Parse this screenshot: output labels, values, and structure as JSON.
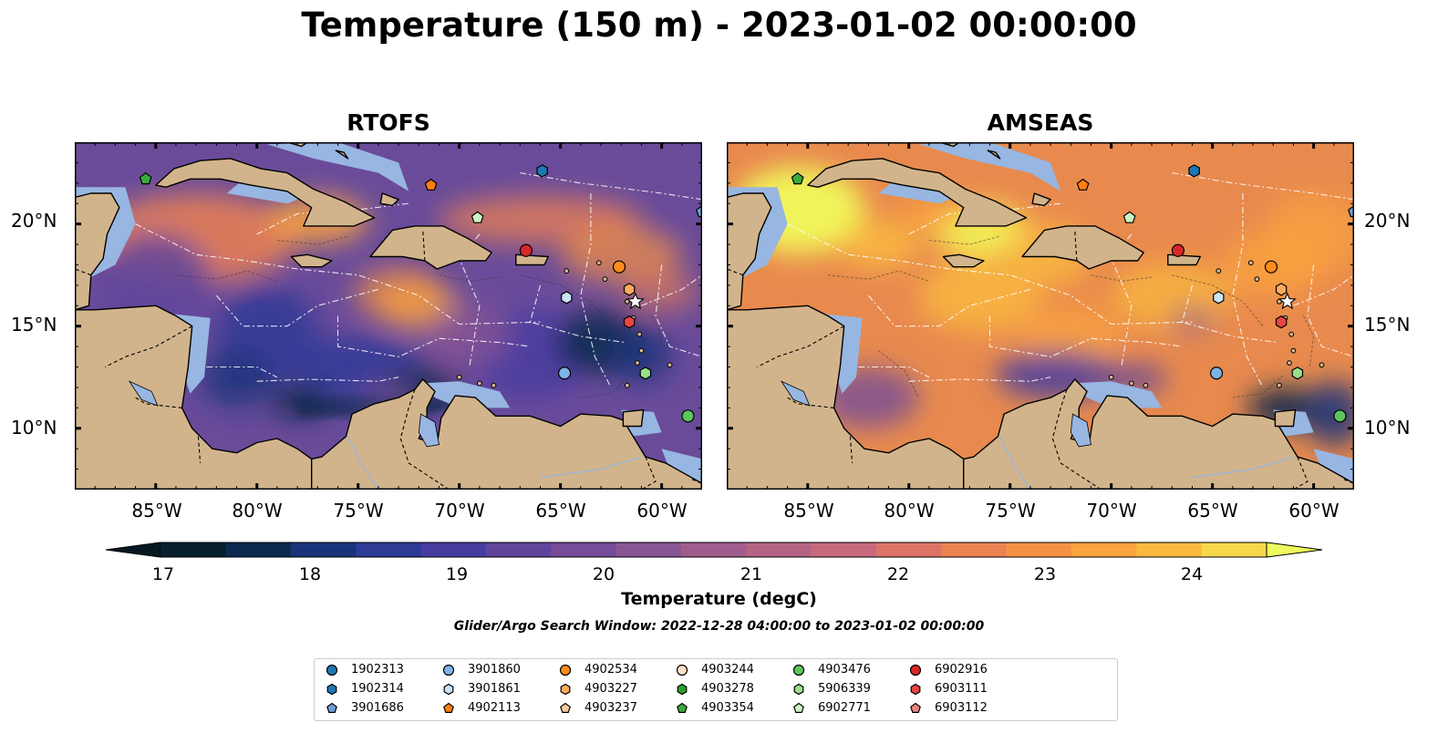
{
  "figure": {
    "title": "Temperature (150 m) - 2023-01-02 00:00:00",
    "search_window": "Glider/Argo Search Window: 2022-12-28 04:00:00 to 2023-01-02 00:00:00"
  },
  "panels": [
    {
      "title": "RTOFS",
      "palette": "cool"
    },
    {
      "title": "AMSEAS",
      "palette": "warm"
    }
  ],
  "axes": {
    "lat_ticks": [
      "20°N",
      "15°N",
      "10°N"
    ],
    "lon_ticks": [
      "85°W",
      "80°W",
      "75°W",
      "70°W",
      "65°W",
      "60°W"
    ],
    "lon_range": [
      -89,
      -58
    ],
    "lat_range": [
      7,
      24
    ]
  },
  "colorbar": {
    "label": "Temperature (degC)",
    "ticks": [
      "17",
      "18",
      "19",
      "20",
      "21",
      "22",
      "23",
      "24"
    ],
    "colors": [
      "#07202f",
      "#0b2a4e",
      "#18337a",
      "#2d3a96",
      "#473ca0",
      "#5f449c",
      "#744c97",
      "#8a5593",
      "#9f5c8d",
      "#b56385",
      "#c8697d",
      "#dc7468",
      "#ec8152",
      "#f79142",
      "#fba33e",
      "#fbba3f",
      "#f7d84b"
    ],
    "over_color": "#eef95e",
    "under_color": "#061923"
  },
  "map_colors": {
    "land": "#d2b48c",
    "shallow_water": "#97b6e1",
    "grid": "#ffffff"
  },
  "floats": [
    {
      "id": "1902313",
      "marker": "circle",
      "color": "#1f77b4",
      "lon": null,
      "lat": null
    },
    {
      "id": "1902314",
      "marker": "hexagon",
      "color": "#1f77b4",
      "lon": -65.9,
      "lat": 22.6
    },
    {
      "id": "3901686",
      "marker": "pentagon",
      "color": "#6e9fd8",
      "lon": -58.0,
      "lat": 20.6
    },
    {
      "id": "3901860",
      "marker": "circle",
      "color": "#7fb2e5",
      "lon": -64.8,
      "lat": 12.7
    },
    {
      "id": "3901861",
      "marker": "hexagon",
      "color": "#c9e4f7",
      "lon": -64.7,
      "lat": 16.4
    },
    {
      "id": "4902113",
      "marker": "pentagon",
      "color": "#ff7f0e",
      "lon": -71.4,
      "lat": 21.9
    },
    {
      "id": "4902534",
      "marker": "circle",
      "color": "#ff8c1a",
      "lon": -62.1,
      "lat": 17.9
    },
    {
      "id": "4903227",
      "marker": "hexagon",
      "color": "#ffab5e",
      "lon": -61.6,
      "lat": 16.8
    },
    {
      "id": "4903237",
      "marker": "pentagon",
      "color": "#ffc89a",
      "lon": null,
      "lat": null
    },
    {
      "id": "4903244",
      "marker": "circle",
      "color": "#ffe0c7",
      "lon": null,
      "lat": null
    },
    {
      "id": "4903278",
      "marker": "hexagon",
      "color": "#2ca02c",
      "lon": null,
      "lat": null
    },
    {
      "id": "4903354",
      "marker": "pentagon",
      "color": "#3aab3a",
      "lon": -85.5,
      "lat": 22.2
    },
    {
      "id": "4903476",
      "marker": "circle",
      "color": "#5fc45f",
      "lon": -58.7,
      "lat": 10.6
    },
    {
      "id": "5906339",
      "marker": "hexagon",
      "color": "#98df8a",
      "lon": -60.8,
      "lat": 12.7
    },
    {
      "id": "6902771",
      "marker": "pentagon",
      "color": "#cdf2c4",
      "lon": -69.1,
      "lat": 20.3
    },
    {
      "id": "6902916",
      "marker": "circle",
      "color": "#d62728",
      "lon": -66.7,
      "lat": 18.7
    },
    {
      "id": "6903111",
      "marker": "hexagon",
      "color": "#e84545",
      "lon": -61.6,
      "lat": 15.2
    },
    {
      "id": "6903112",
      "marker": "pentagon",
      "color": "#f08080",
      "lon": null,
      "lat": null
    }
  ]
}
